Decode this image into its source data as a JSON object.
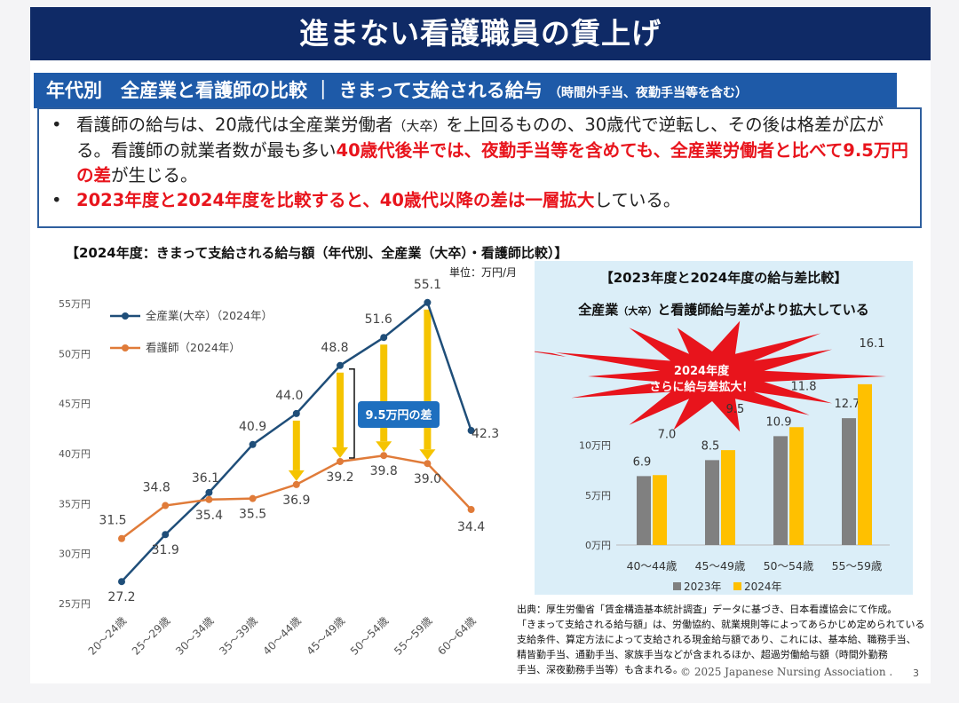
{
  "title": "進まない看護職員の賃上げ",
  "subheader": {
    "main": "年代別　全産業と看護師の比較 ｜ きまって支給される給与",
    "note": "（時間外手当、夜勤手当等を含む）"
  },
  "bullets": {
    "b1_p1": "看護師の給与は、20歳代は全産業労働者",
    "b1_p1_small": "（大卒）",
    "b1_p2": "を上回るものの、30歳代で逆転し、その後は格差が広がる。看護師の就業者数が最も多い",
    "b1_red": "40歳代後半では、夜勤手当等を含めても、全産業労働者と比べて9.5万円の差",
    "b1_end": "が生じる。",
    "b2_red": "2023年度と2024年度を比較すると、40歳代以降の差は一層拡大",
    "b2_end": "している。"
  },
  "line_chart_title": "【2024年度：きまって支給される給与額（年代別、全産業（大卒）・看護師比較）】",
  "unit_label": "単位：万円/月",
  "gap_label": "9.5万円の差",
  "bar_panel": {
    "title": "【2023年度と2024年度の給与差比較】",
    "sub_a": "全産業",
    "sub_small": "（大卒）",
    "sub_b": "と看護師給与差がより拡大している",
    "burst_line1": "2024年度",
    "burst_line2": "さらに給与差拡大！"
  },
  "source_lines": [
    "出典：厚生労働省「賃金構造基本統計調査」データに基づき、日本看護協会にて作成。",
    "「きまって支給される給与額」は、労働協約、就業規則等によってあらかじめ定められている",
    "支給条件、算定方法によって支給される現金給与額であり、これには、基本給、職務手当、",
    "精皆勤手当、通勤手当、家族手当などが含まれるほか、超過労働給与額（時間外勤務",
    "手当、深夜勤務手当等）も含まれる。"
  ],
  "copyright": "© 2025 Japanese Nursing Association .",
  "page_number": "3",
  "colors": {
    "navy": "#0f2a66",
    "blue": "#1e5aa8",
    "line_all": "#1f4e79",
    "line_nurse": "#e07b39",
    "arrow": "#f5c400",
    "bar23": "#808080",
    "bar24": "#ffc000",
    "red": "#e8141c"
  },
  "chart_data": [
    {
      "type": "line",
      "title": "2024年度：きまって支給される給与額（年代別、全産業（大卒）・看護師比較）",
      "categories": [
        "20〜24歳",
        "25〜29歳",
        "30〜34歳",
        "35〜39歳",
        "40〜44歳",
        "45〜49歳",
        "50〜54歳",
        "55〜59歳",
        "60〜64歳"
      ],
      "series": [
        {
          "name": "全産業(大卒）（2024年）",
          "values": [
            27.2,
            31.9,
            36.1,
            40.9,
            44.0,
            48.8,
            51.6,
            55.1,
            42.3
          ]
        },
        {
          "name": "看護師（2024年）",
          "values": [
            31.5,
            34.8,
            35.4,
            35.5,
            36.9,
            39.2,
            39.8,
            39.0,
            34.4
          ]
        }
      ],
      "yticks": [
        "25万円",
        "30万円",
        "35万円",
        "40万円",
        "45万円",
        "50万円",
        "55万円"
      ],
      "ylim": [
        25,
        55
      ],
      "legend": "top-left"
    },
    {
      "type": "bar",
      "title": "2023年度と2024年度の給与差比較",
      "categories": [
        "40〜44歳",
        "45〜49歳",
        "50〜54歳",
        "55〜59歳"
      ],
      "series": [
        {
          "name": "2023年",
          "values": [
            6.9,
            8.5,
            10.9,
            12.7
          ]
        },
        {
          "name": "2024年",
          "values": [
            7.0,
            9.5,
            11.8,
            16.1
          ]
        }
      ],
      "yticks": [
        "0万円",
        "5万円",
        "10万円"
      ],
      "ylim": [
        0,
        16.1
      ],
      "legend": "bottom"
    }
  ]
}
